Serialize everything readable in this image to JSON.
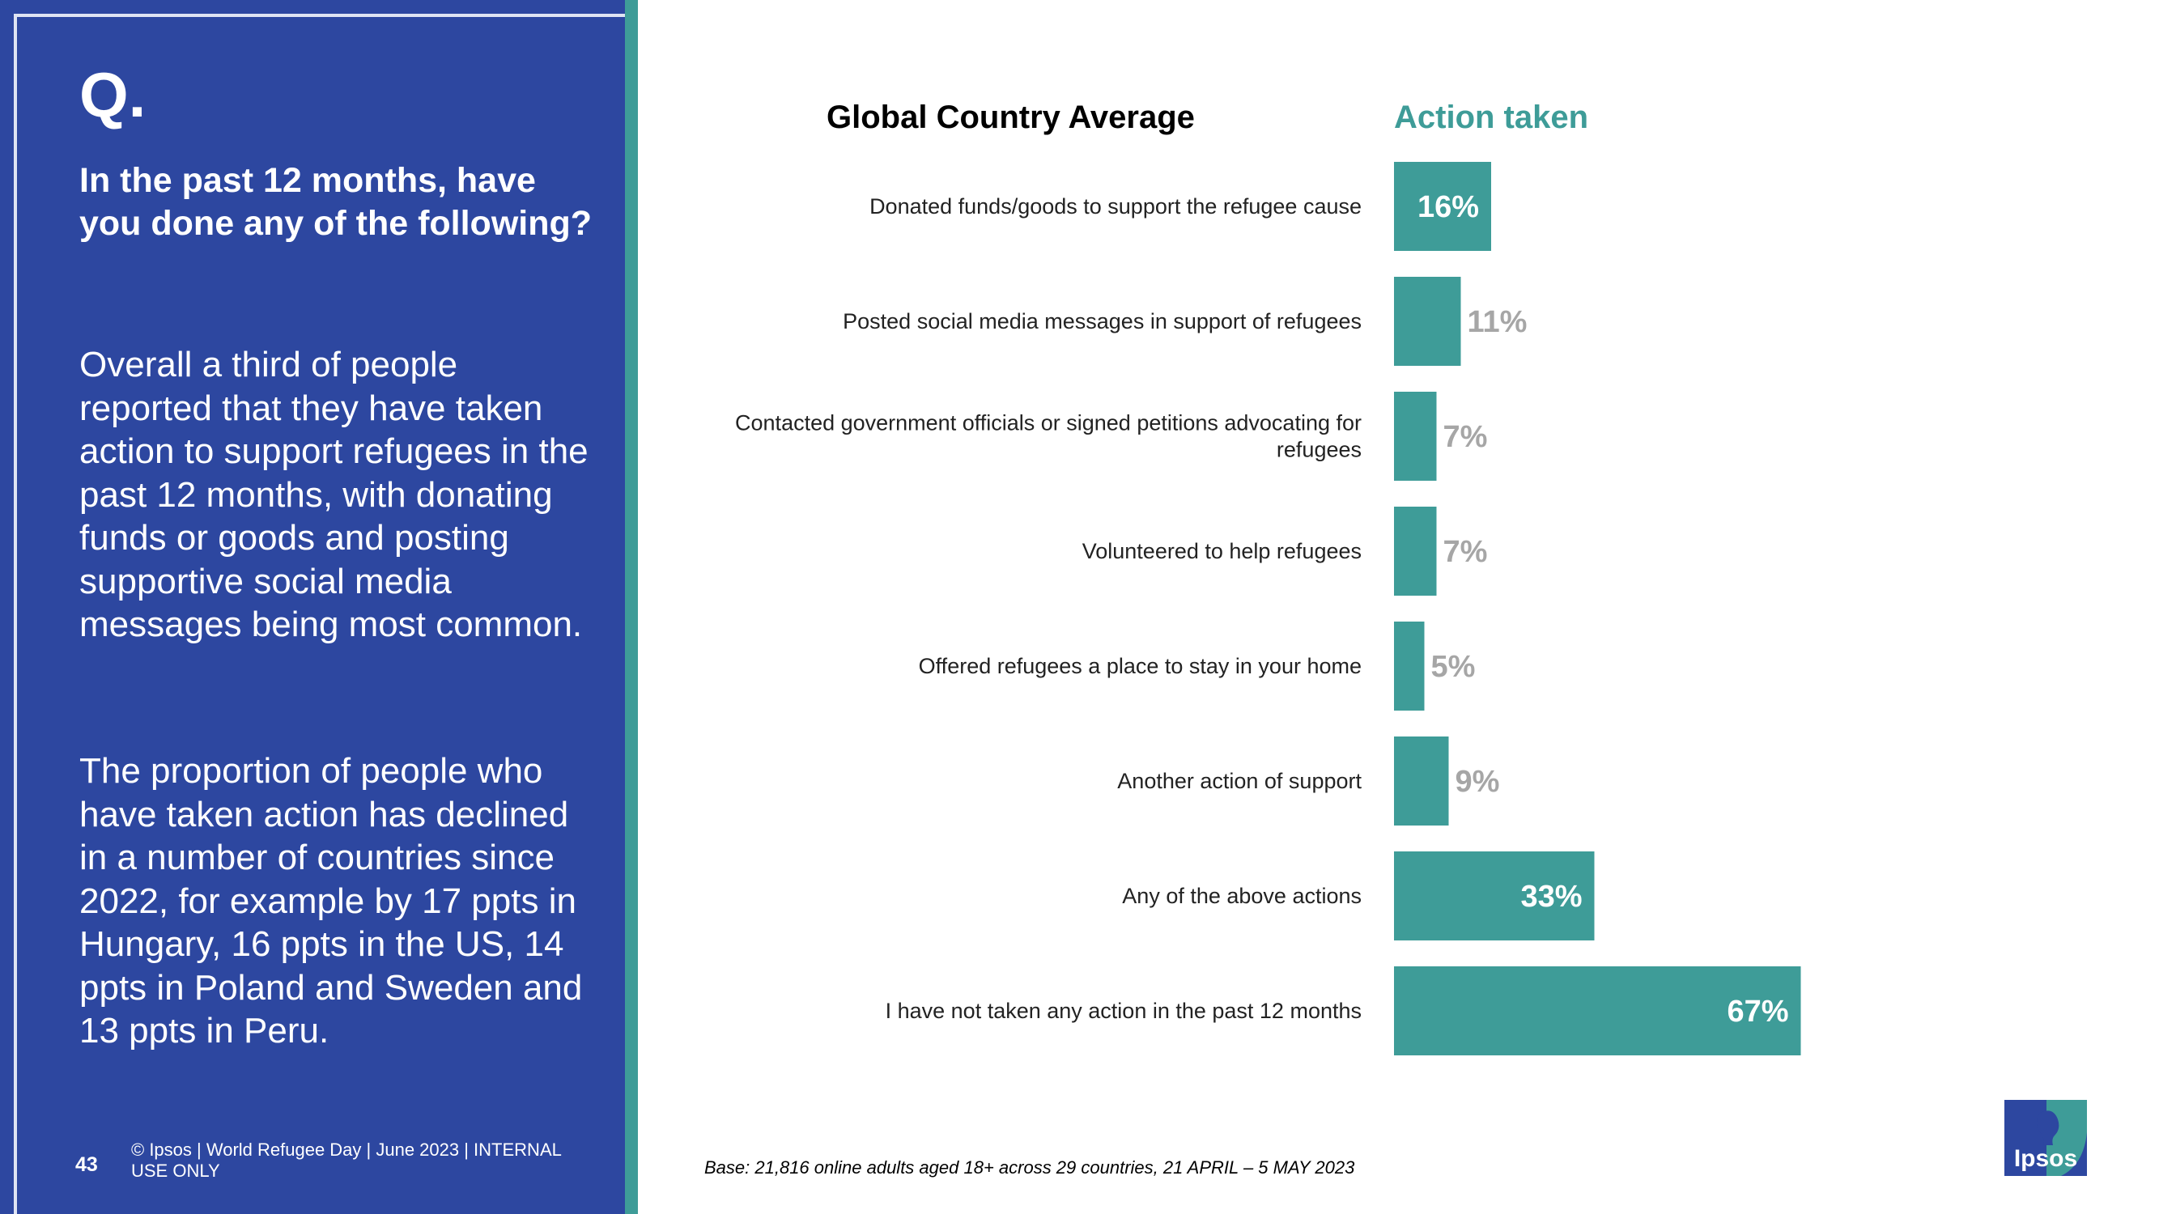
{
  "left_panel": {
    "q_mark": "Q.",
    "question": "In the past 12 months, have you done any of the following?",
    "body_1": "Overall a third of people reported that they have taken action to support refugees in the past 12 months, with donating funds or goods and posting supportive social media messages being most common.",
    "body_2": "The proportion of people who have taken action has declined in a number of countries since 2022, for example by 17 ppts in Hungary, 16 ppts in the US, 14 ppts in Poland and Sweden and 13 ppts in Peru.",
    "page_number": "43",
    "footer": "© Ipsos | World Refugee Day | June 2023 | INTERNAL USE ONLY"
  },
  "chart_data": {
    "type": "bar",
    "orientation": "horizontal",
    "title": "Global Country Average",
    "series": [
      {
        "name": "Action taken",
        "values": [
          16,
          11,
          7,
          7,
          5,
          9,
          33,
          67
        ],
        "labels": [
          "16%",
          "11%",
          "7%",
          "7%",
          "5%",
          "9%",
          "33%",
          "67%"
        ]
      }
    ],
    "categories": [
      [
        "Donated funds/goods to support the refugee cause"
      ],
      [
        "Posted social media messages in support of refugees"
      ],
      [
        "Contacted government officials or signed petitions advocating for",
        "refugees"
      ],
      [
        "Volunteered to help refugees"
      ],
      [
        "Offered refugees a place to stay in your home"
      ],
      [
        "Another action of support"
      ],
      [
        "Any of the above actions"
      ],
      [
        "I have not taken any action in the past 12 months"
      ]
    ],
    "xlim": [
      0,
      100
    ],
    "grid": false,
    "legend": "none"
  },
  "base_note": "Base: 21,816 online adults aged 18+ across 29 countries,  21 APRIL – 5 MAY 2023",
  "logo_text": "Ipsos",
  "colors": {
    "panel_blue": "#2d47a0",
    "accent_teal": "#3e9c98",
    "label_gray": "#a6a6a6",
    "white": "#ffffff"
  }
}
